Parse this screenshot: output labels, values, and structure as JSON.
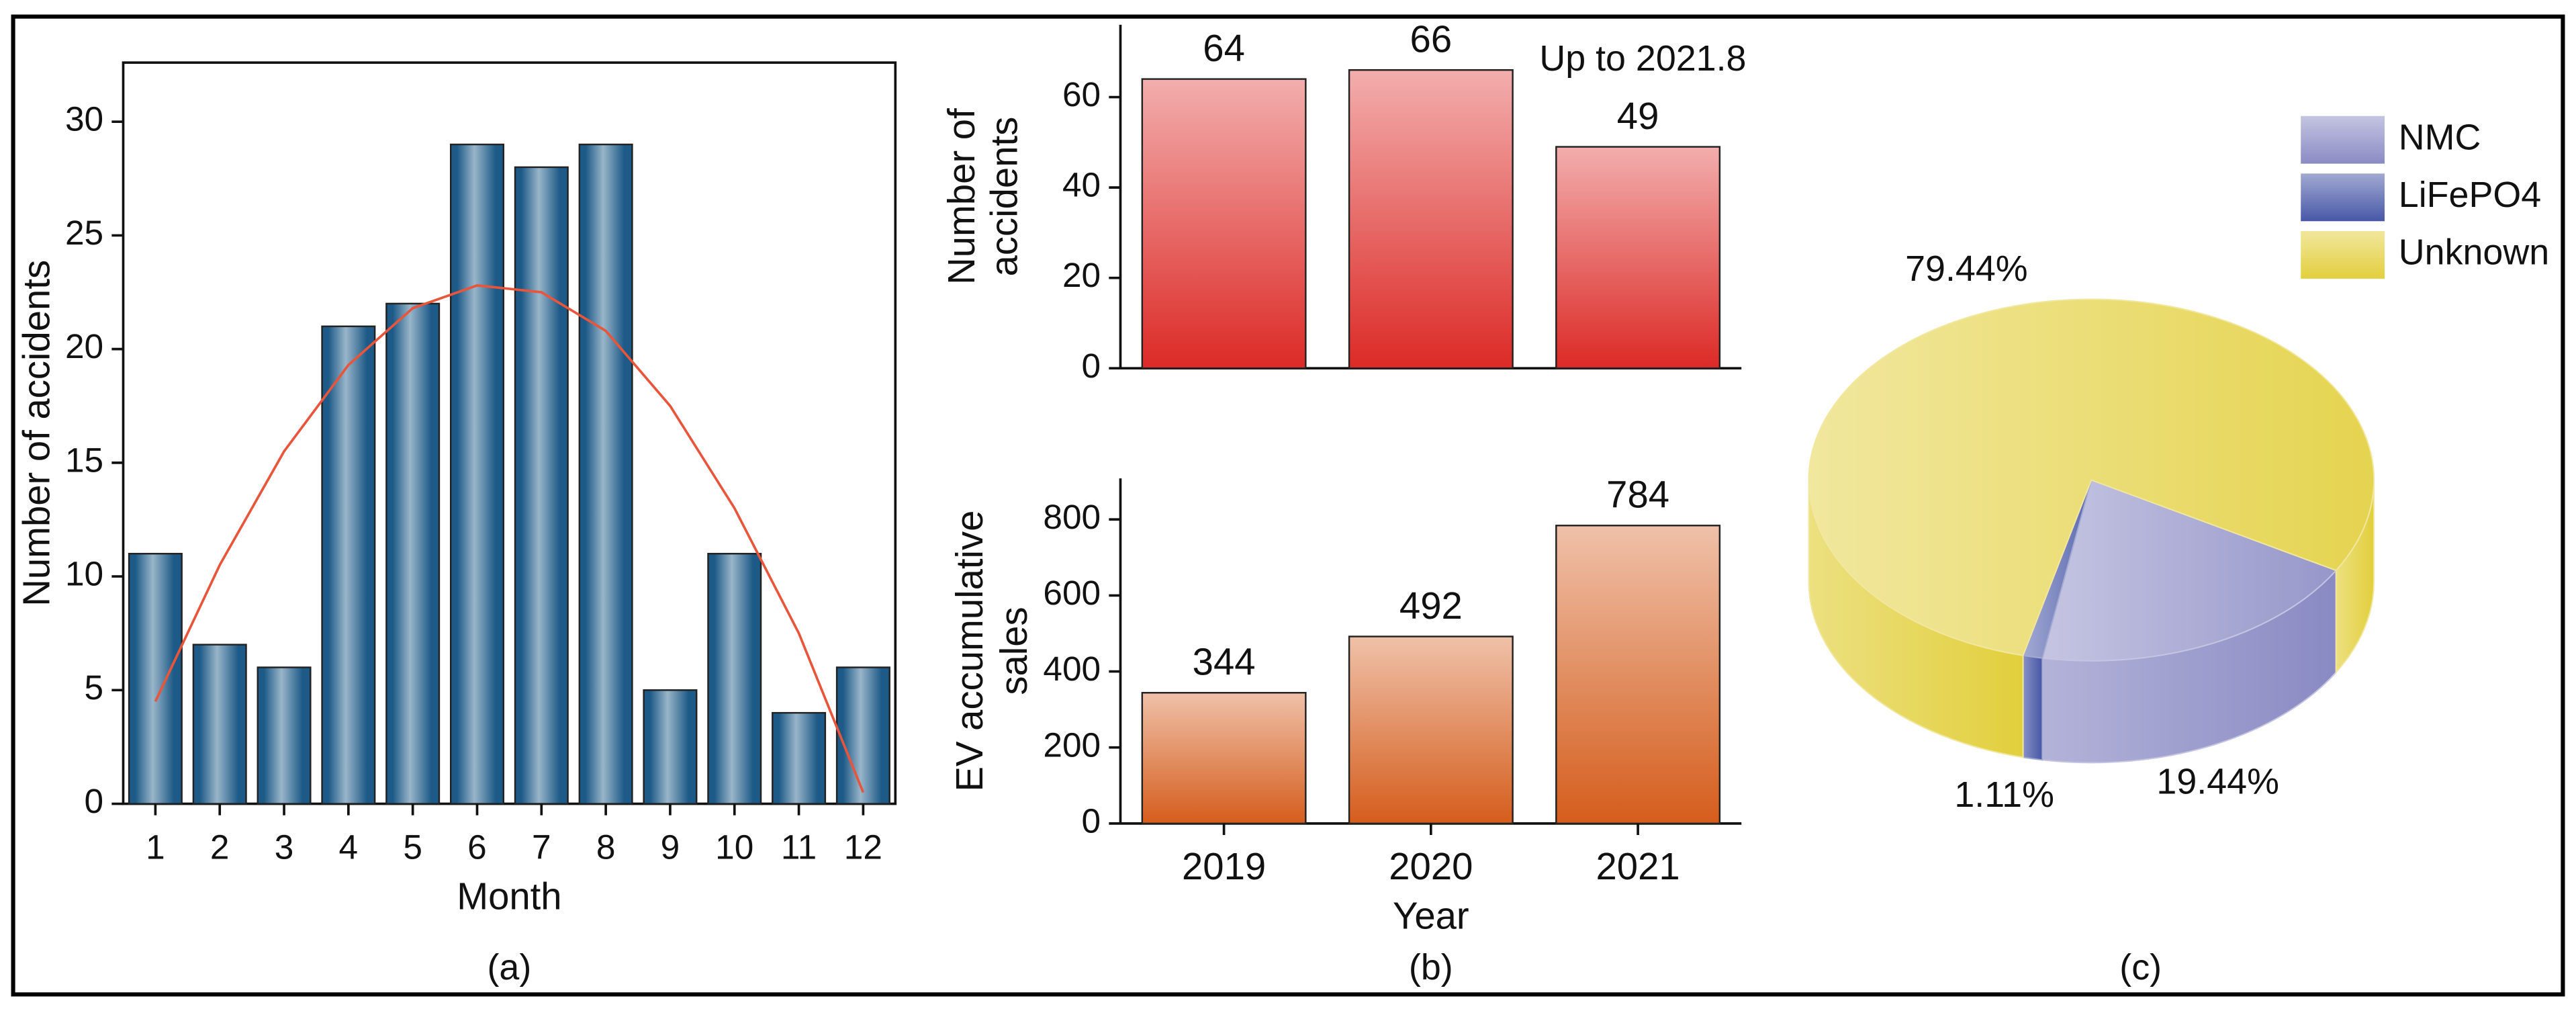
{
  "chart_data": [
    {
      "type": "bar",
      "categories": [
        "1",
        "2",
        "3",
        "4",
        "5",
        "6",
        "7",
        "8",
        "9",
        "10",
        "11",
        "12"
      ],
      "values": [
        11,
        7,
        6,
        21,
        22,
        29,
        28,
        29,
        5,
        11,
        4,
        6
      ],
      "color": "#1d5a87",
      "fit": {
        "color": "#e8553a",
        "values": [
          4.5,
          10.5,
          15.5,
          19.3,
          21.8,
          22.8,
          22.5,
          20.8,
          17.5,
          13,
          7.5,
          0.5
        ]
      },
      "ylim": [
        0,
        32.6
      ],
      "yticks": [
        0,
        5,
        10,
        15,
        20,
        25,
        30
      ],
      "xlabel": "Month",
      "ylabel": [
        "Number of accidents"
      ],
      "panel": "(a)",
      "frame": true
    },
    {
      "type": "bar",
      "values": [
        64,
        66,
        49
      ],
      "color": "#dc2a26",
      "ylim": [
        0,
        76
      ],
      "yticks": [
        0,
        20,
        40,
        60
      ],
      "ylabel": [
        "Number of",
        "accidents"
      ],
      "annotation": "Up to 2021.8",
      "show_values": true
    },
    {
      "type": "bar",
      "categories": [
        "2019",
        "2020",
        "2021"
      ],
      "values": [
        344,
        492,
        784
      ],
      "color": "#d55d1c",
      "ylim": [
        0,
        908
      ],
      "yticks": [
        0,
        200,
        400,
        600,
        800
      ],
      "xlabel": "Year",
      "ylabel": [
        "EV accumulative",
        "sales"
      ],
      "panel": "(b)",
      "show_values": true
    },
    {
      "type": "pie",
      "categories": [
        "NMC",
        "LiFePO4",
        "Unknown"
      ],
      "values": [
        19.44,
        1.11,
        79.44
      ],
      "value_labels": [
        "19.44%",
        "1.11%",
        "79.44%"
      ],
      "colors": [
        "#8a8ac4",
        "#4656a6",
        "#e2cf3c"
      ],
      "panel": "(c)"
    }
  ]
}
